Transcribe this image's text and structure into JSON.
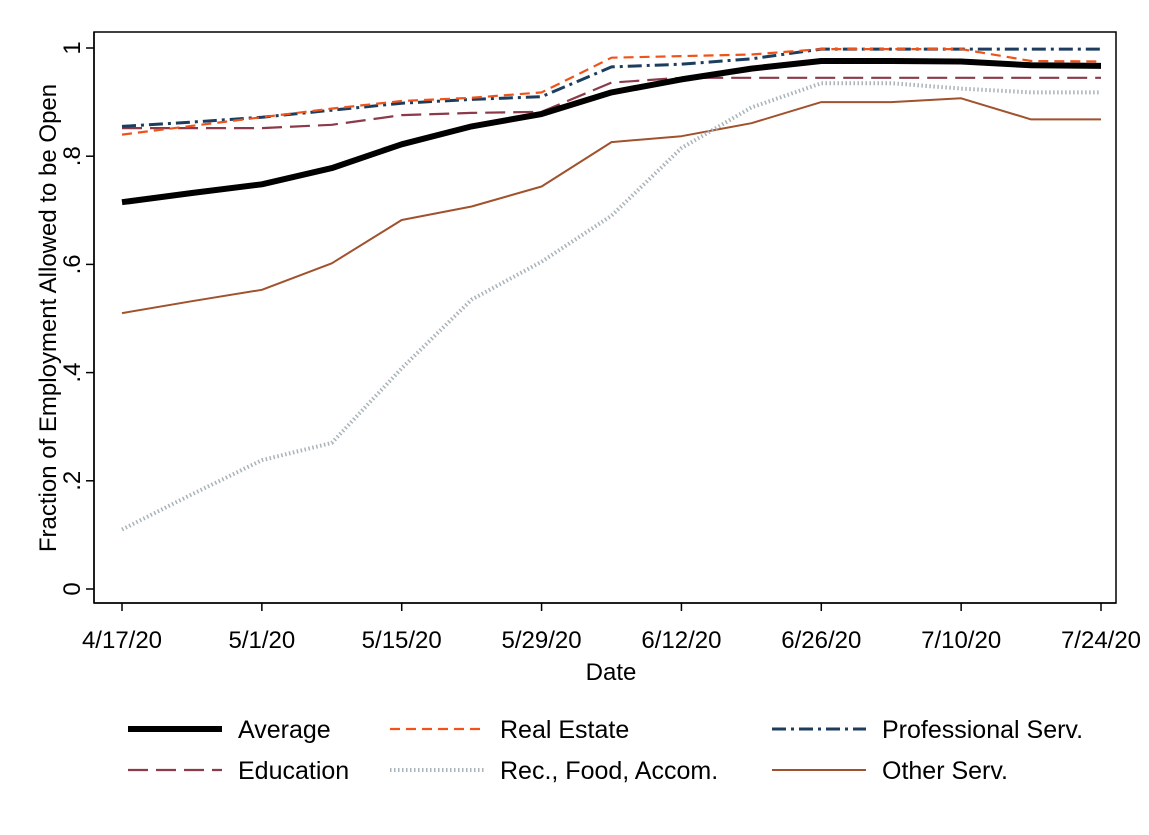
{
  "chart_data": {
    "type": "line",
    "title": "",
    "xlabel": "Date",
    "ylabel": "Fraction of Employment Allowed to be Open",
    "x": [
      "4/17/20",
      "4/24/20",
      "5/1/20",
      "5/8/20",
      "5/15/20",
      "5/22/20",
      "5/29/20",
      "6/5/20",
      "6/12/20",
      "6/19/20",
      "6/26/20",
      "7/3/20",
      "7/10/20",
      "7/17/20",
      "7/24/20"
    ],
    "xticks": [
      "4/17/20",
      "5/1/20",
      "5/15/20",
      "5/29/20",
      "6/12/20",
      "6/26/20",
      "7/10/20",
      "7/24/20"
    ],
    "ylim": [
      0,
      1
    ],
    "yticks": [
      "0",
      ".2",
      ".4",
      ".6",
      ".8",
      "1"
    ],
    "grid": false,
    "legend_position": "bottom",
    "series": [
      {
        "name": "Average",
        "color": "#000000",
        "style": "solid-thick",
        "values": [
          0.715,
          0.732,
          0.748,
          0.778,
          0.822,
          0.855,
          0.878,
          0.918,
          0.942,
          0.962,
          0.976,
          0.976,
          0.975,
          0.968,
          0.967
        ]
      },
      {
        "name": "Real Estate",
        "color": "#f0531a",
        "style": "dash",
        "values": [
          0.84,
          0.856,
          0.872,
          0.888,
          0.902,
          0.908,
          0.918,
          0.982,
          0.985,
          0.988,
          0.998,
          0.998,
          0.998,
          0.976,
          0.975
        ]
      },
      {
        "name": "Professional Serv.",
        "color": "#1c3d5e",
        "style": "dashdot",
        "values": [
          0.855,
          0.863,
          0.872,
          0.885,
          0.898,
          0.905,
          0.91,
          0.965,
          0.97,
          0.98,
          0.998,
          0.998,
          0.998,
          0.998,
          0.998
        ]
      },
      {
        "name": "Education",
        "color": "#8b3a4a",
        "style": "longdash",
        "values": [
          0.852,
          0.852,
          0.852,
          0.858,
          0.876,
          0.88,
          0.882,
          0.936,
          0.945,
          0.945,
          0.945,
          0.945,
          0.945,
          0.945,
          0.945
        ]
      },
      {
        "name": "Rec., Food, Accom.",
        "color": "#a9b3b9",
        "style": "dot",
        "values": [
          0.11,
          0.175,
          0.238,
          0.27,
          0.408,
          0.535,
          0.605,
          0.69,
          0.815,
          0.89,
          0.935,
          0.935,
          0.925,
          0.918,
          0.918
        ]
      },
      {
        "name": "Other Serv.",
        "color": "#a0522d",
        "style": "solid",
        "values": [
          0.51,
          0.532,
          0.553,
          0.602,
          0.682,
          0.707,
          0.744,
          0.826,
          0.837,
          0.861,
          0.9,
          0.9,
          0.907,
          0.868,
          0.868
        ]
      }
    ]
  }
}
